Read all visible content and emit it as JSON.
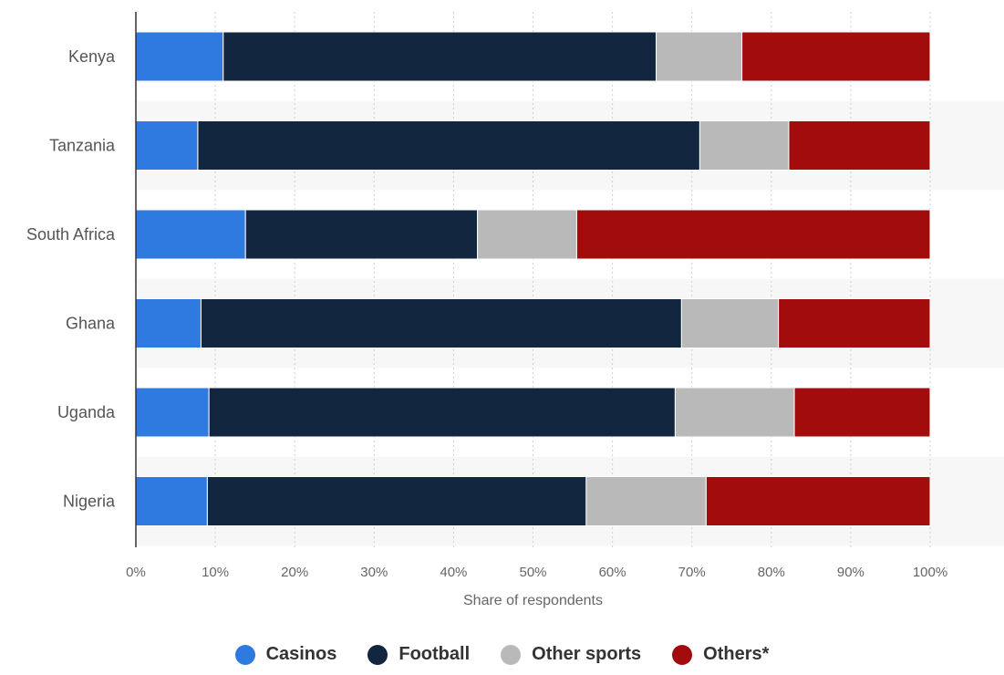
{
  "chart_data": {
    "type": "bar",
    "orientation": "horizontal",
    "stacked": true,
    "categories": [
      "Kenya",
      "Tanzania",
      "South Africa",
      "Ghana",
      "Uganda",
      "Nigeria"
    ],
    "series": [
      {
        "name": "Casinos",
        "color": "#2e7ae0",
        "values": [
          11,
          7.8,
          13.8,
          8.2,
          9.2,
          9.0
        ]
      },
      {
        "name": "Football",
        "color": "#13263f",
        "values": [
          54.5,
          63.2,
          29.2,
          60.5,
          58.7,
          47.7
        ]
      },
      {
        "name": "Other sports",
        "color": "#b9b9b9",
        "values": [
          10.8,
          11.2,
          12.5,
          12.2,
          15.0,
          15.1
        ]
      },
      {
        "name": "Others*",
        "color": "#a30c0c",
        "values": [
          23.7,
          17.8,
          44.5,
          19.1,
          17.1,
          28.2
        ]
      }
    ],
    "xlabel": "Share of respondents",
    "xlim": [
      0,
      100
    ],
    "xticks": [
      "0%",
      "10%",
      "20%",
      "30%",
      "40%",
      "50%",
      "60%",
      "70%",
      "80%",
      "90%",
      "100%"
    ],
    "grid": "vertical-dotted",
    "legend_position": "bottom-center"
  }
}
